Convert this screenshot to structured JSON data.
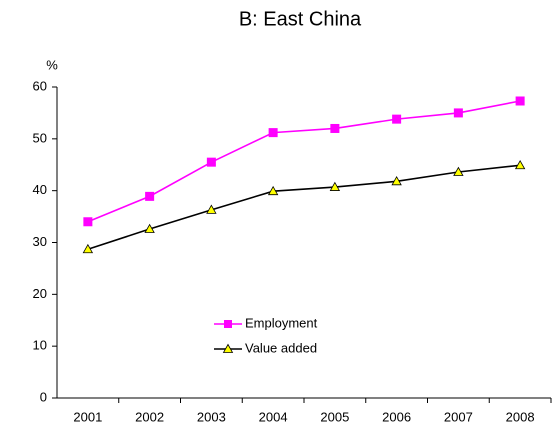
{
  "chart_data": {
    "type": "line",
    "title": "B: East China",
    "y_label": "%",
    "categories": [
      "2001",
      "2002",
      "2003",
      "2004",
      "2005",
      "2006",
      "2007",
      "2008"
    ],
    "series": [
      {
        "name": "Employment",
        "color": "#ff00ff",
        "marker": "square",
        "marker_color": "#ff00ff",
        "values": [
          34,
          38.9,
          45.5,
          51.2,
          52,
          53.8,
          55,
          57.3
        ]
      },
      {
        "name": "Value added",
        "color": "#000000",
        "marker": "triangle",
        "marker_color": "#ffff00",
        "values": [
          28.7,
          32.6,
          36.3,
          39.9,
          40.7,
          41.8,
          43.6,
          44.9
        ]
      }
    ],
    "ylim": [
      0,
      60
    ],
    "yticks": [
      0,
      10,
      20,
      30,
      40,
      50,
      60
    ],
    "grid": false,
    "legend": "lower center"
  }
}
